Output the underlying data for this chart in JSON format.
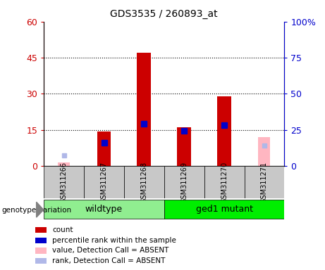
{
  "title": "GDS3535 / 260893_at",
  "samples": [
    "GSM311266",
    "GSM311267",
    "GSM311268",
    "GSM311269",
    "GSM311270",
    "GSM311271"
  ],
  "groups": [
    {
      "label": "wildtype",
      "indices": [
        0,
        1,
        2
      ],
      "color": "#90ee90"
    },
    {
      "label": "ged1 mutant",
      "indices": [
        3,
        4,
        5
      ],
      "color": "#00ee00"
    }
  ],
  "count_values": [
    null,
    14.5,
    47.0,
    16.0,
    29.0,
    null
  ],
  "percentile_values": [
    null,
    16.0,
    29.5,
    24.5,
    28.5,
    null
  ],
  "absent_value_values": [
    1.5,
    null,
    null,
    null,
    null,
    12.0
  ],
  "absent_rank_values": [
    7.5,
    null,
    null,
    null,
    null,
    14.0
  ],
  "left_ylim": [
    0,
    60
  ],
  "right_ylim": [
    0,
    100
  ],
  "left_yticks": [
    0,
    15,
    30,
    45,
    60
  ],
  "right_yticks": [
    0,
    25,
    50,
    75,
    100
  ],
  "right_yticklabels": [
    "0",
    "25",
    "50",
    "75",
    "100%"
  ],
  "bar_color": "#cc0000",
  "percentile_color": "#0000cc",
  "absent_value_color": "#ffb6c1",
  "absent_rank_color": "#b0b8e8",
  "genotype_label": "genotype/variation",
  "background_color": "#c8c8c8",
  "plot_bg_color": "#ffffff",
  "legend_items": [
    {
      "label": "count",
      "color": "#cc0000"
    },
    {
      "label": "percentile rank within the sample",
      "color": "#0000cc"
    },
    {
      "label": "value, Detection Call = ABSENT",
      "color": "#ffb6c1"
    },
    {
      "label": "rank, Detection Call = ABSENT",
      "color": "#b0b8e8"
    }
  ],
  "fig_width": 4.61,
  "fig_height": 3.84,
  "dpi": 100
}
